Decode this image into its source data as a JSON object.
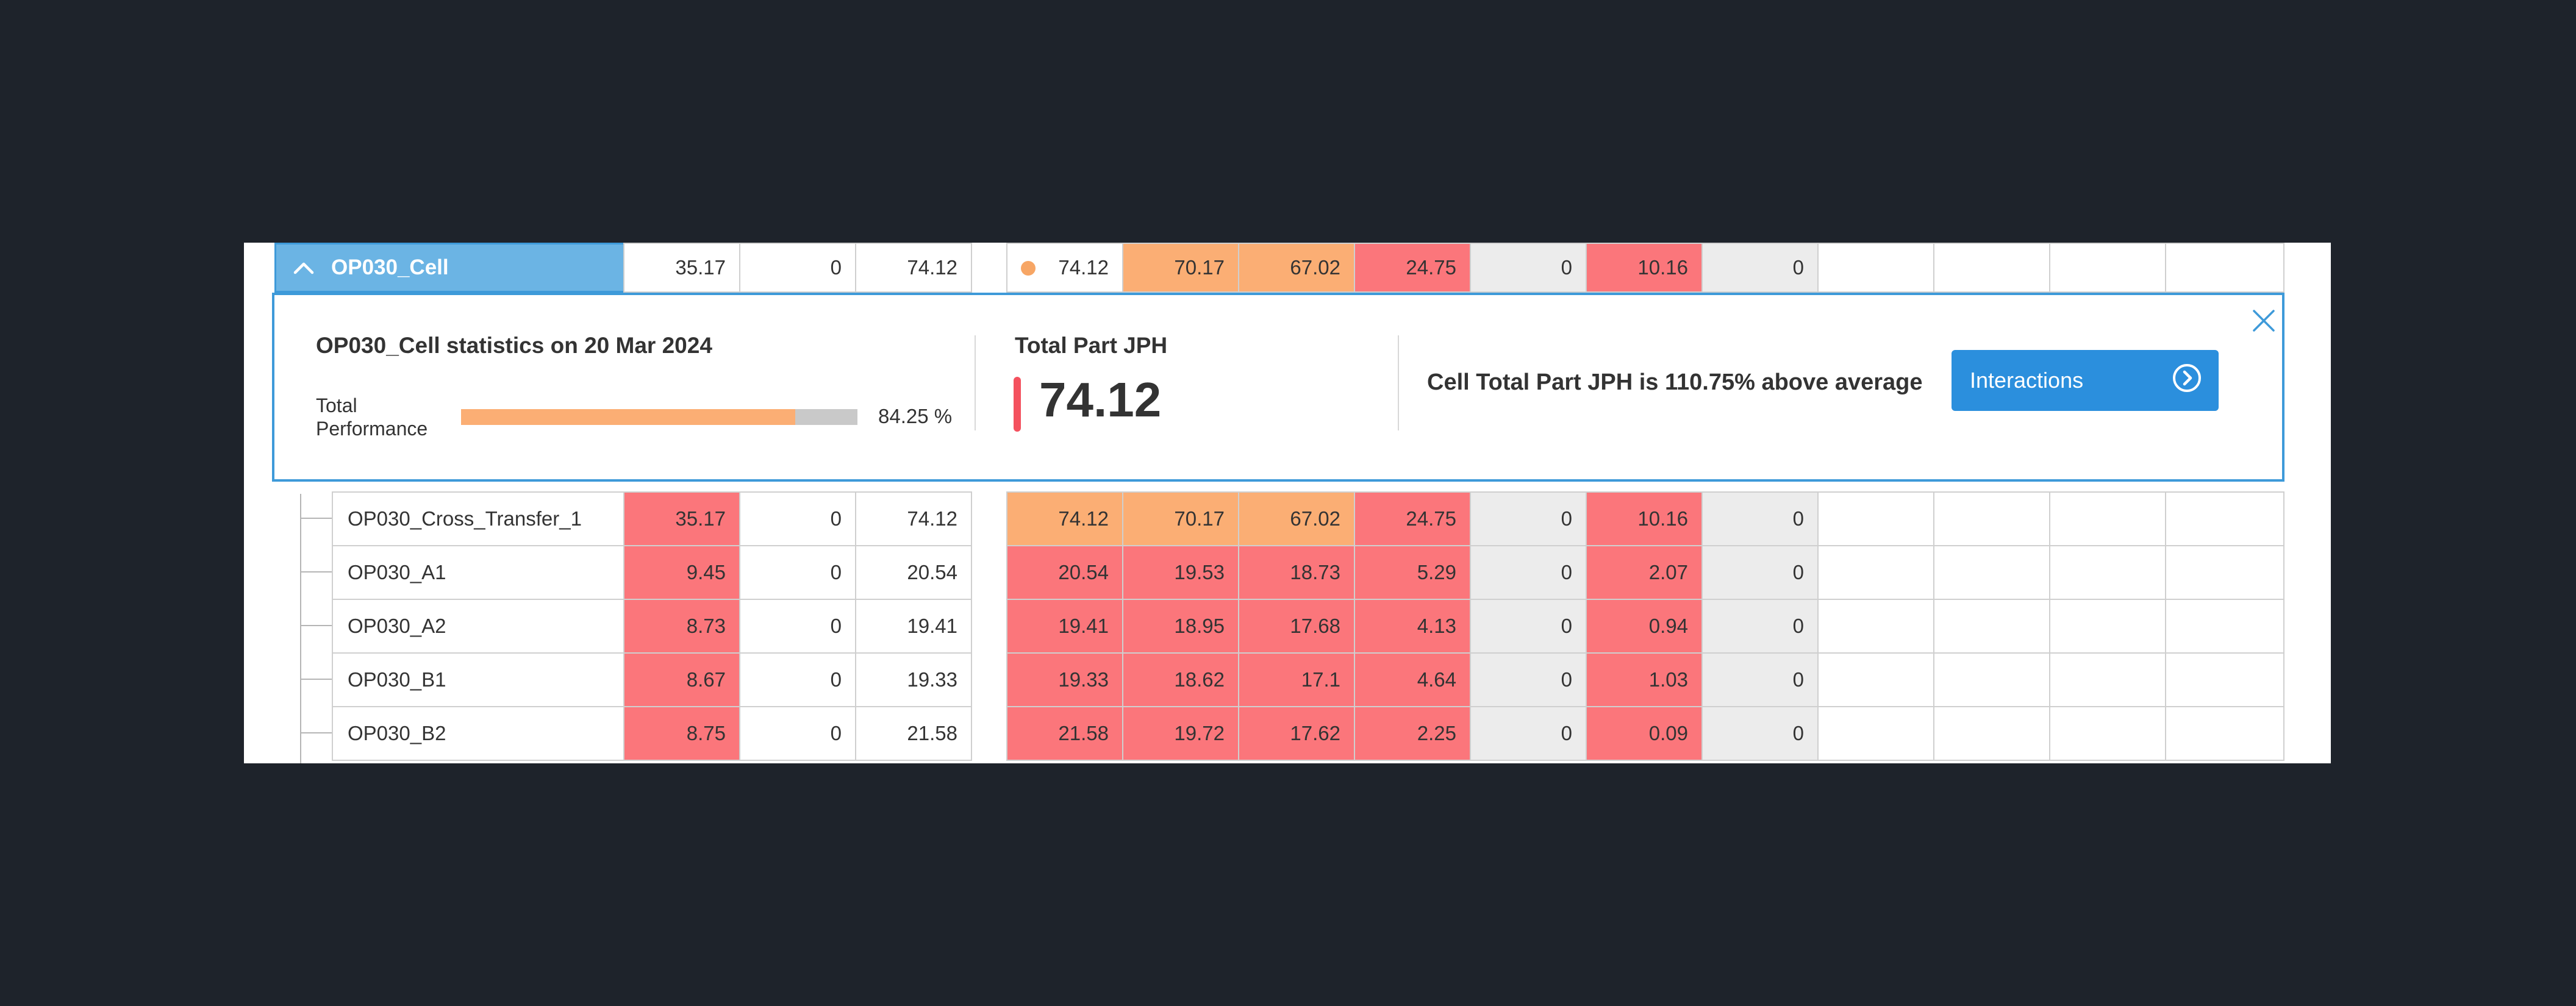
{
  "header_row": {
    "name": "OP030_Cell",
    "col1": "35.17",
    "col2": "0",
    "col3": "74.12",
    "col4": "74.12",
    "col5": "70.17",
    "col6": "67.02",
    "col7": "24.75",
    "col8": "0",
    "col9": "10.16",
    "col10": "0",
    "col11": "",
    "col12": "",
    "col13": "",
    "col14": ""
  },
  "detail": {
    "title": "OP030_Cell statistics on 20 Mar 2024",
    "performance_label_line1": "Total",
    "performance_label_line2": "Performance",
    "performance_value": "84.25 %",
    "performance_pct": 84.25,
    "jph_title": "Total Part JPH",
    "jph_value": "74.12",
    "above_text": "Cell Total Part JPH is 110.75% above average",
    "interactions_label": "Interactions"
  },
  "rows": [
    {
      "name": "OP030_Cross_Transfer_1",
      "v": [
        "35.17",
        "0",
        "74.12",
        "74.12",
        "70.17",
        "67.02",
        "24.75",
        "0",
        "10.16",
        "0",
        "",
        "",
        "",
        ""
      ]
    },
    {
      "name": "OP030_A1",
      "v": [
        "9.45",
        "0",
        "20.54",
        "20.54",
        "19.53",
        "18.73",
        "5.29",
        "0",
        "2.07",
        "0",
        "",
        "",
        "",
        ""
      ]
    },
    {
      "name": "OP030_A2",
      "v": [
        "8.73",
        "0",
        "19.41",
        "19.41",
        "18.95",
        "17.68",
        "4.13",
        "0",
        "0.94",
        "0",
        "",
        "",
        "",
        ""
      ]
    },
    {
      "name": "OP030_B1",
      "v": [
        "8.67",
        "0",
        "19.33",
        "19.33",
        "18.62",
        "17.1",
        "4.64",
        "0",
        "1.03",
        "0",
        "",
        "",
        "",
        ""
      ]
    },
    {
      "name": "OP030_B2",
      "v": [
        "8.75",
        "0",
        "21.58",
        "21.58",
        "19.72",
        "17.62",
        "2.25",
        "0",
        "0.09",
        "0",
        "",
        "",
        "",
        ""
      ]
    }
  ],
  "colors": {
    "header_blue": "#6bb4e4",
    "accent_blue": "#2b8fdd",
    "orange": "#fbae74",
    "red": "#fb767b",
    "gray": "#ececec",
    "jph_marker": "#f4515e"
  }
}
